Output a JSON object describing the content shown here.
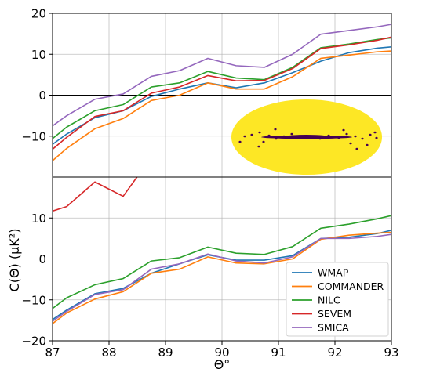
{
  "chart_data": {
    "type": "line",
    "xlabel": "Θ°",
    "ylabel": "C(Θ) (μK²)",
    "xlim": [
      87,
      93
    ],
    "xticks": [
      "87",
      "88",
      "89",
      "90",
      "91",
      "92",
      "93"
    ],
    "grid": true,
    "panels": [
      {
        "id": "top",
        "ylim": [
          -20,
          20
        ],
        "yticks": [
          "−10",
          "0",
          "10",
          "20"
        ],
        "ytick_values": [
          -10,
          0,
          10,
          20
        ],
        "inset": "sky mask (Mollweide projection), yellow with dark masked regions along the galactic plane",
        "series": [
          {
            "name": "WMAP",
            "color": "#1f77b4",
            "x": [
              87,
              87.25,
              87.75,
              88.25,
              88.75,
              89.25,
              89.75,
              90.25,
              90.75,
              91.25,
              91.75,
              92.25,
              92.75,
              93
            ],
            "y": [
              -12,
              -9.5,
              -5.5,
              -3.8,
              -0.3,
              1.5,
              3,
              1.8,
              3,
              5.5,
              8.3,
              10.4,
              11.5,
              11.8
            ]
          },
          {
            "name": "COMMANDER",
            "color": "#ff7f0e",
            "x": [
              87,
              87.25,
              87.75,
              88.25,
              88.75,
              89.25,
              89.75,
              90.25,
              90.75,
              91.25,
              91.75,
              92.25,
              92.75,
              93
            ],
            "y": [
              -16,
              -13,
              -8.2,
              -5.7,
              -1.3,
              0,
              3,
              1.5,
              1.5,
              4.5,
              9,
              9.8,
              10.6,
              10.8
            ]
          },
          {
            "name": "NILC",
            "color": "#2ca02c",
            "x": [
              87,
              87.25,
              87.75,
              88.25,
              88.75,
              89.25,
              89.75,
              90.25,
              90.75,
              91.25,
              91.75,
              92.25,
              92.75,
              93
            ],
            "y": [
              -10.6,
              -7.8,
              -3.8,
              -2.3,
              2,
              3,
              5.8,
              4.2,
              3.8,
              6.8,
              11.6,
              12.5,
              13.6,
              14
            ]
          },
          {
            "name": "SEVEM",
            "color": "#d62728",
            "x": [
              87,
              87.25,
              87.75,
              88.25,
              88.75,
              89.25,
              89.75,
              90.25,
              90.75,
              91.25,
              91.75,
              92.25,
              92.75,
              93
            ],
            "y": [
              -13.2,
              -10.3,
              -5.2,
              -3.8,
              0.5,
              2,
              4.8,
              3.5,
              3.6,
              6.5,
              11.4,
              12.3,
              13.4,
              14.2
            ]
          },
          {
            "name": "SMICA",
            "color": "#9467bd",
            "x": [
              87,
              87.25,
              87.75,
              88.25,
              88.75,
              89.25,
              89.75,
              90.25,
              90.75,
              91.25,
              91.75,
              92.25,
              92.75,
              93
            ],
            "y": [
              -7.5,
              -5,
              -1,
              0.3,
              4.6,
              6,
              9,
              7.2,
              6.8,
              10,
              14.9,
              15.8,
              16.7,
              17.3
            ]
          }
        ]
      },
      {
        "id": "bottom",
        "ylim": [
          -20,
          20
        ],
        "yticks": [
          "−20",
          "−10",
          "0",
          "10"
        ],
        "ytick_values": [
          -20,
          -10,
          0,
          10
        ],
        "series": [
          {
            "name": "WMAP",
            "color": "#1f77b4",
            "x": [
              87,
              87.25,
              87.75,
              88.25,
              88.75,
              89.25,
              89.75,
              90.25,
              90.75,
              91.25,
              91.75,
              92.25,
              92.75,
              93
            ],
            "y": [
              -14.8,
              -12.5,
              -8.5,
              -7.2,
              -3.5,
              -1.2,
              1,
              -0.3,
              -0.3,
              0.8,
              5,
              5.3,
              6.2,
              7
            ]
          },
          {
            "name": "COMMANDER",
            "color": "#ff7f0e",
            "x": [
              87,
              87.25,
              87.75,
              88.25,
              88.75,
              89.25,
              89.75,
              90.25,
              90.75,
              91.25,
              91.75,
              92.25,
              92.75,
              93
            ],
            "y": [
              -15.8,
              -13.2,
              -9.8,
              -8,
              -3.5,
              -2.5,
              0.5,
              -1,
              -1.2,
              0,
              4.8,
              5.8,
              6.3,
              6.5
            ]
          },
          {
            "name": "NILC",
            "color": "#2ca02c",
            "x": [
              87,
              87.25,
              87.75,
              88.25,
              88.75,
              89.25,
              89.75,
              90.25,
              90.75,
              91.25,
              91.75,
              92.25,
              92.75,
              93
            ],
            "y": [
              -12.1,
              -9.5,
              -6.3,
              -4.8,
              -0.5,
              0.3,
              2.9,
              1.4,
              1.1,
              3,
              7.5,
              8.5,
              9.8,
              10.6
            ]
          },
          {
            "name": "SEVEM",
            "color": "#d62728",
            "x": [
              87,
              87.25,
              87.75,
              88.25,
              88.6
            ],
            "y": [
              11.7,
              12.8,
              18.8,
              15.3,
              22
            ]
          },
          {
            "name": "SMICA",
            "color": "#9467bd",
            "x": [
              87,
              87.25,
              87.75,
              88.25,
              88.75,
              89.25,
              89.75,
              90.25,
              90.75,
              91.25,
              91.75,
              92.25,
              92.75,
              93
            ],
            "y": [
              -15.2,
              -12.8,
              -8.7,
              -7.5,
              -2.5,
              -1.2,
              1.2,
              -0.5,
              -1,
              0.5,
              5,
              5,
              5.5,
              6
            ]
          }
        ]
      }
    ],
    "legend": {
      "placement": "lower-right",
      "panel": "bottom",
      "entries": [
        "WMAP",
        "COMMANDER",
        "NILC",
        "SEVEM",
        "SMICA"
      ]
    }
  }
}
